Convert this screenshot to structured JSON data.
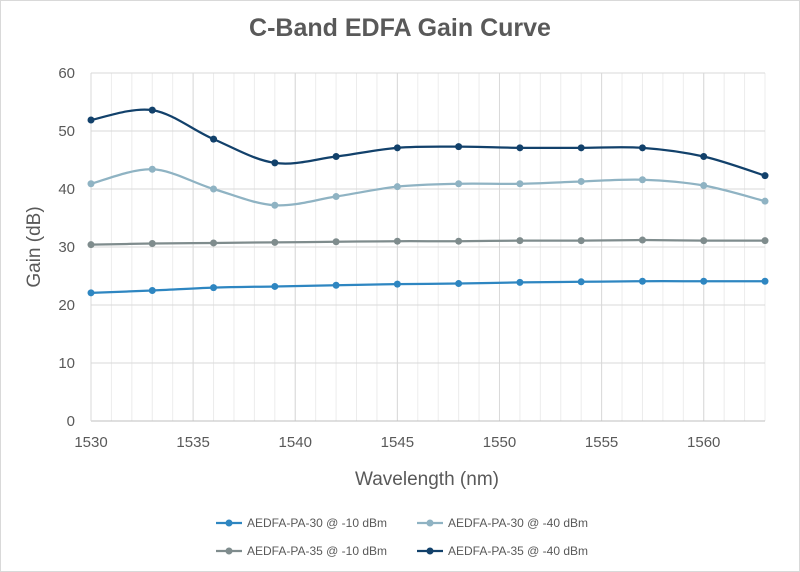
{
  "chart_data": {
    "type": "line",
    "title": "C-Band EDFA Gain Curve",
    "xlabel": "Wavelength (nm)",
    "ylabel": "Gain (dB)",
    "xlim": [
      1530,
      1563
    ],
    "ylim": [
      0,
      60
    ],
    "x_ticks": [
      1530,
      1535,
      1540,
      1545,
      1550,
      1555,
      1560
    ],
    "y_ticks": [
      0,
      10,
      20,
      30,
      40,
      50,
      60
    ],
    "x_minor_step": 1,
    "grid": true,
    "legend_position": "bottom",
    "x": [
      1530,
      1533,
      1536,
      1539,
      1542,
      1545,
      1548,
      1551,
      1554,
      1557,
      1560,
      1563
    ],
    "series": [
      {
        "name": "AEDFA-PA-30 @ -10 dBm",
        "color": "#2e86c1",
        "values": [
          22.1,
          22.5,
          23.0,
          23.2,
          23.4,
          23.6,
          23.7,
          23.9,
          24.0,
          24.1,
          24.1,
          24.1
        ]
      },
      {
        "name": "AEDFA-PA-30 @ -40 dBm",
        "color": "#8fb3c3",
        "values": [
          40.9,
          43.4,
          40.0,
          37.2,
          38.7,
          40.4,
          40.9,
          40.9,
          41.3,
          41.6,
          40.6,
          37.9
        ]
      },
      {
        "name": "AEDFA-PA-35 @ -10 dBm",
        "color": "#7f8c8d",
        "values": [
          30.4,
          30.6,
          30.7,
          30.8,
          30.9,
          31.0,
          31.0,
          31.1,
          31.1,
          31.2,
          31.1,
          31.1
        ]
      },
      {
        "name": "AEDFA-PA-35 @ -40 dBm",
        "color": "#12416b",
        "values": [
          51.9,
          53.6,
          48.6,
          44.5,
          45.6,
          47.1,
          47.3,
          47.1,
          47.1,
          47.1,
          45.6,
          42.3
        ]
      }
    ]
  }
}
